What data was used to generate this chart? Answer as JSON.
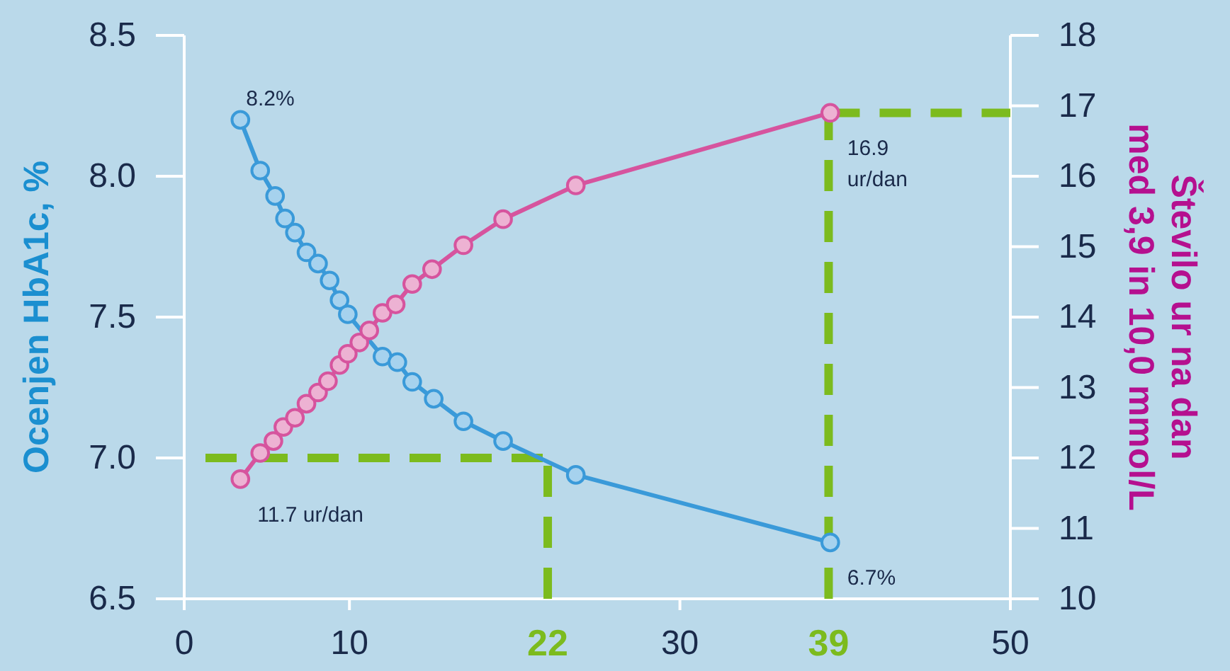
{
  "chart_data": {
    "type": "line",
    "ylabel": "Ocenjen HbA1c, %",
    "y2label": "Število ur na dan\nmed 3,9 in 10,0 mmol/L",
    "xlim": [
      0,
      50
    ],
    "xticks": [
      0,
      10,
      30,
      50
    ],
    "ylim": [
      6.5,
      8.5
    ],
    "yticks": [
      6.5,
      {
        "value": 7,
        "label": "7.0"
      },
      7.5,
      {
        "value": 8,
        "label": "8.0"
      },
      8.5
    ],
    "y2lim": [
      10,
      18
    ],
    "y2ticks": [
      10,
      11,
      12,
      13,
      14,
      15,
      16,
      17,
      18
    ],
    "grid": false,
    "marker": "circle",
    "line_style": "solid",
    "series": [
      {
        "color": "#3a9ad9",
        "x": [
          3.4,
          4.6,
          5.5,
          6.1,
          6.7,
          7.4,
          8.1,
          8.8,
          9.4,
          9.9,
          10.9,
          12.0,
          12.9,
          13.8,
          15.1,
          16.9,
          19.3,
          23.7,
          39.1
        ],
        "values": [
          8.2,
          8.02,
          7.93,
          7.85,
          7.8,
          7.73,
          7.69,
          7.63,
          7.56,
          7.51,
          null,
          7.36,
          7.34,
          7.27,
          7.21,
          7.13,
          7.06,
          6.94,
          6.7
        ],
        "value_labels": [
          "8.2%",
          null,
          null,
          null,
          null,
          null,
          null,
          null,
          null,
          null,
          null,
          null,
          null,
          null,
          null,
          null,
          null,
          null,
          "6.7%"
        ]
      },
      {
        "color": "#d6549e",
        "axis": "y2",
        "x": [
          3.4,
          4.6,
          5.4,
          6.0,
          6.7,
          7.4,
          8.1,
          8.7,
          9.4,
          9.9,
          10.6,
          11.2,
          12.0,
          12.8,
          13.8,
          15.0,
          16.9,
          19.3,
          23.7,
          39.1
        ],
        "values": [
          11.7,
          12.07,
          12.24,
          12.44,
          12.57,
          12.77,
          12.93,
          13.09,
          13.32,
          13.48,
          13.64,
          13.81,
          14.06,
          14.18,
          14.47,
          14.68,
          15.02,
          15.39,
          15.87,
          16.9
        ],
        "value_labels": [
          "11.7 ur/dan",
          null,
          null,
          null,
          null,
          null,
          null,
          null,
          null,
          null,
          null,
          null,
          null,
          null,
          null,
          null,
          null,
          null,
          null,
          "16.9 ur/dan"
        ]
      }
    ],
    "ref_lines": [
      {
        "axis": "x",
        "value": 22,
        "label": "22",
        "color": "#7cbb1e",
        "line_style": "dashed"
      },
      {
        "axis": "x",
        "value": 39,
        "label": "39",
        "color": "#7cbb1e",
        "line_style": "dashed"
      },
      {
        "axis": "y",
        "value": 7,
        "color": "#7cbb1e",
        "line_style": "dashed"
      },
      {
        "axis": "y2",
        "value": 16.9,
        "color": "#7cbb1e",
        "line_style": "dashed"
      }
    ]
  }
}
